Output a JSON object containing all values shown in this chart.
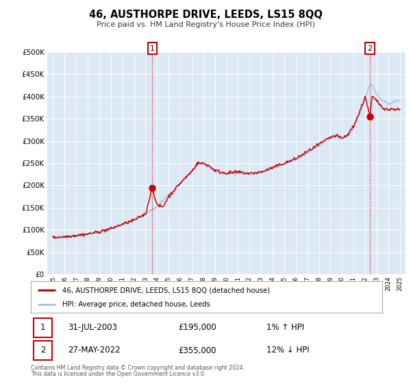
{
  "title": "46, AUSTHORPE DRIVE, LEEDS, LS15 8QQ",
  "subtitle": "Price paid vs. HM Land Registry's House Price Index (HPI)",
  "bg_color": "#dce9f5",
  "hpi_color": "#a8c4e0",
  "price_color": "#cc0000",
  "marker1_x": 2003.58,
  "marker1_y": 195000,
  "marker2_x": 2022.41,
  "marker2_y": 355000,
  "annotation1_date": "31-JUL-2003",
  "annotation1_price": "£195,000",
  "annotation1_hpi": "1% ↑ HPI",
  "annotation2_date": "27-MAY-2022",
  "annotation2_price": "£355,000",
  "annotation2_hpi": "12% ↓ HPI",
  "legend_line1": "46, AUSTHORPE DRIVE, LEEDS, LS15 8QQ (detached house)",
  "legend_line2": "HPI: Average price, detached house, Leeds",
  "footer1": "Contains HM Land Registry data © Crown copyright and database right 2024.",
  "footer2": "This data is licensed under the Open Government Licence v3.0.",
  "ylim": [
    0,
    500000
  ],
  "yticks": [
    0,
    50000,
    100000,
    150000,
    200000,
    250000,
    300000,
    350000,
    400000,
    450000,
    500000
  ],
  "xlim_min": 1994.5,
  "xlim_max": 2025.5,
  "xticks": [
    1995,
    1996,
    1997,
    1998,
    1999,
    2000,
    2001,
    2002,
    2003,
    2004,
    2005,
    2006,
    2007,
    2008,
    2009,
    2010,
    2011,
    2012,
    2013,
    2014,
    2015,
    2016,
    2017,
    2018,
    2019,
    2020,
    2021,
    2022,
    2023,
    2024,
    2025
  ],
  "hpi_anchors_x": [
    1995,
    1996,
    1997,
    1998,
    1999,
    2000,
    2001,
    2002,
    2003,
    2004,
    2005,
    2006,
    2007,
    2007.5,
    2008,
    2008.5,
    2009,
    2009.5,
    2010,
    2011,
    2012,
    2013,
    2014,
    2015,
    2016,
    2017,
    2018,
    2019,
    2019.5,
    2020,
    2020.5,
    2021,
    2021.5,
    2022,
    2022.3,
    2022.5,
    2023,
    2023.5,
    2024,
    2024.5,
    2025
  ],
  "hpi_anchors_y": [
    83000,
    85000,
    88000,
    91000,
    96000,
    103000,
    113000,
    122000,
    136000,
    153000,
    178000,
    205000,
    232000,
    248000,
    248000,
    242000,
    232000,
    228000,
    226000,
    228000,
    225000,
    228000,
    238000,
    248000,
    258000,
    272000,
    290000,
    306000,
    310000,
    303000,
    310000,
    330000,
    360000,
    395000,
    420000,
    430000,
    405000,
    390000,
    383000,
    388000,
    392000
  ],
  "price_anchors_x": [
    1995,
    1996,
    1997,
    1998,
    1999,
    2000,
    2001,
    2002,
    2003,
    2003.58,
    2004,
    2004.5,
    2005,
    2006,
    2007,
    2007.5,
    2008,
    2008.5,
    2009,
    2009.5,
    2010,
    2011,
    2012,
    2013,
    2014,
    2015,
    2016,
    2017,
    2018,
    2019,
    2019.5,
    2020,
    2020.5,
    2021,
    2021.5,
    2022,
    2022.41,
    2022.6,
    2023,
    2023.5,
    2024,
    2024.5,
    2025
  ],
  "price_anchors_y": [
    83000,
    85000,
    88000,
    91000,
    96000,
    103000,
    113000,
    122000,
    136000,
    195000,
    155000,
    152000,
    175000,
    205000,
    232000,
    250000,
    250000,
    244000,
    234000,
    230000,
    228000,
    230000,
    227000,
    230000,
    240000,
    250000,
    260000,
    276000,
    292000,
    308000,
    312000,
    306000,
    314000,
    334000,
    364000,
    400000,
    355000,
    400000,
    390000,
    375000,
    370000,
    372000,
    370000
  ]
}
